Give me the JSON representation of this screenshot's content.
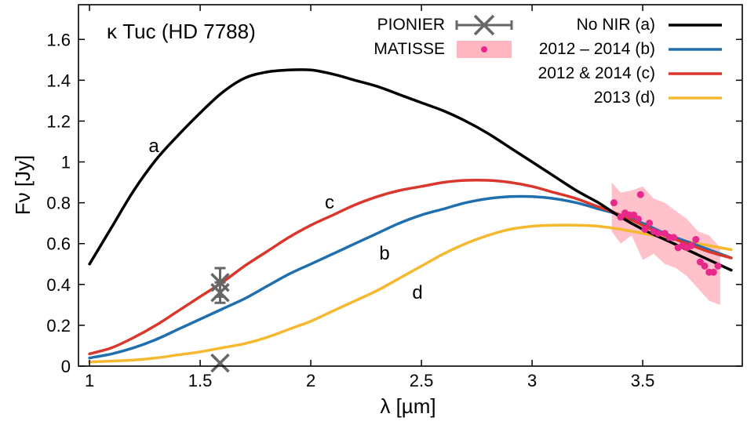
{
  "chart_data": {
    "type": "line",
    "title": "κ Tuc (HD 7788)",
    "xlabel": "λ [µm]",
    "ylabel": "Fν [Jy]",
    "xlim": [
      0.95,
      3.95
    ],
    "ylim": [
      0,
      1.77
    ],
    "xticks": [
      1,
      1.5,
      2,
      2.5,
      3,
      3.5
    ],
    "xtick_labels": [
      "1",
      "1.5",
      "2",
      "2.5",
      "3",
      "3.5"
    ],
    "yticks": [
      0,
      0.2,
      0.4,
      0.6,
      0.8,
      1,
      1.2,
      1.4,
      1.6
    ],
    "ytick_labels": [
      "0",
      "0.2",
      "0.4",
      "0.6",
      "0.8",
      "1",
      "1.2",
      "1.4",
      "1.6"
    ],
    "grid": false,
    "legend_placement": "top-right",
    "series": [
      {
        "name": "No NIR (a)",
        "label": "a",
        "color": "#000000",
        "x": [
          1.0,
          1.1,
          1.2,
          1.3,
          1.4,
          1.5,
          1.6,
          1.7,
          1.8,
          1.9,
          2.0,
          2.1,
          2.2,
          2.3,
          2.4,
          2.5,
          2.6,
          2.7,
          2.8,
          2.9,
          3.0,
          3.1,
          3.2,
          3.3,
          3.4,
          3.5,
          3.6,
          3.7,
          3.8,
          3.9
        ],
        "values": [
          0.5,
          0.68,
          0.86,
          1.01,
          1.13,
          1.24,
          1.34,
          1.41,
          1.44,
          1.45,
          1.45,
          1.43,
          1.4,
          1.37,
          1.33,
          1.29,
          1.25,
          1.2,
          1.14,
          1.07,
          1.0,
          0.93,
          0.86,
          0.8,
          0.73,
          0.67,
          0.62,
          0.57,
          0.52,
          0.47
        ]
      },
      {
        "name": "2012 – 2014 (b)",
        "label": "b",
        "color": "#1f6fae",
        "x": [
          1.0,
          1.1,
          1.2,
          1.3,
          1.4,
          1.5,
          1.6,
          1.7,
          1.8,
          1.9,
          2.0,
          2.1,
          2.2,
          2.3,
          2.4,
          2.5,
          2.6,
          2.7,
          2.8,
          2.9,
          3.0,
          3.1,
          3.2,
          3.3,
          3.4,
          3.5,
          3.6,
          3.7,
          3.8,
          3.9
        ],
        "values": [
          0.04,
          0.06,
          0.09,
          0.13,
          0.18,
          0.23,
          0.28,
          0.33,
          0.39,
          0.45,
          0.5,
          0.55,
          0.6,
          0.65,
          0.7,
          0.74,
          0.77,
          0.8,
          0.82,
          0.83,
          0.83,
          0.82,
          0.8,
          0.77,
          0.74,
          0.7,
          0.65,
          0.61,
          0.57,
          0.53
        ]
      },
      {
        "name": "2012 & 2014 (c)",
        "label": "c",
        "color": "#d9372b",
        "x": [
          1.0,
          1.1,
          1.2,
          1.3,
          1.4,
          1.5,
          1.6,
          1.7,
          1.8,
          1.9,
          2.0,
          2.1,
          2.2,
          2.3,
          2.4,
          2.5,
          2.6,
          2.7,
          2.8,
          2.9,
          3.0,
          3.1,
          3.2,
          3.3,
          3.4,
          3.5,
          3.6,
          3.7,
          3.8,
          3.9
        ],
        "values": [
          0.06,
          0.09,
          0.14,
          0.2,
          0.27,
          0.34,
          0.41,
          0.49,
          0.56,
          0.63,
          0.69,
          0.74,
          0.79,
          0.83,
          0.86,
          0.88,
          0.9,
          0.91,
          0.91,
          0.9,
          0.88,
          0.85,
          0.82,
          0.78,
          0.74,
          0.69,
          0.64,
          0.6,
          0.56,
          0.53
        ]
      },
      {
        "name": "2013 (d)",
        "label": "d",
        "color": "#f5b82e",
        "x": [
          1.0,
          1.1,
          1.2,
          1.3,
          1.4,
          1.5,
          1.6,
          1.7,
          1.8,
          1.9,
          2.0,
          2.1,
          2.2,
          2.3,
          2.4,
          2.5,
          2.6,
          2.7,
          2.8,
          2.9,
          3.0,
          3.1,
          3.2,
          3.3,
          3.4,
          3.5,
          3.6,
          3.7,
          3.8,
          3.9
        ],
        "values": [
          0.02,
          0.025,
          0.03,
          0.04,
          0.055,
          0.07,
          0.09,
          0.11,
          0.14,
          0.18,
          0.22,
          0.27,
          0.32,
          0.37,
          0.43,
          0.49,
          0.55,
          0.6,
          0.64,
          0.67,
          0.685,
          0.69,
          0.69,
          0.685,
          0.67,
          0.65,
          0.63,
          0.61,
          0.59,
          0.57
        ]
      }
    ],
    "pionier": {
      "name": "PIONIER",
      "color": "#666666",
      "points": [
        {
          "x": 1.59,
          "y": 0.41,
          "err": 0.07
        },
        {
          "x": 1.59,
          "y": 0.36,
          "err": 0.05
        },
        {
          "x": 1.59,
          "y": 0.015,
          "err": 0.0
        }
      ]
    },
    "matisse": {
      "name": "MATISSE",
      "point_color": "#e8288a",
      "band_color": "#ffb6c1",
      "points": [
        {
          "x": 3.37,
          "y": 0.8
        },
        {
          "x": 3.4,
          "y": 0.73
        },
        {
          "x": 3.42,
          "y": 0.75
        },
        {
          "x": 3.44,
          "y": 0.74
        },
        {
          "x": 3.46,
          "y": 0.74
        },
        {
          "x": 3.48,
          "y": 0.72
        },
        {
          "x": 3.49,
          "y": 0.84
        },
        {
          "x": 3.51,
          "y": 0.67
        },
        {
          "x": 3.53,
          "y": 0.7
        },
        {
          "x": 3.55,
          "y": 0.66
        },
        {
          "x": 3.57,
          "y": 0.65
        },
        {
          "x": 3.6,
          "y": 0.65
        },
        {
          "x": 3.62,
          "y": 0.63
        },
        {
          "x": 3.64,
          "y": 0.63
        },
        {
          "x": 3.66,
          "y": 0.58
        },
        {
          "x": 3.68,
          "y": 0.59
        },
        {
          "x": 3.7,
          "y": 0.58
        },
        {
          "x": 3.72,
          "y": 0.59
        },
        {
          "x": 3.74,
          "y": 0.62
        },
        {
          "x": 3.76,
          "y": 0.51
        },
        {
          "x": 3.78,
          "y": 0.49
        },
        {
          "x": 3.8,
          "y": 0.46
        },
        {
          "x": 3.82,
          "y": 0.46
        },
        {
          "x": 3.84,
          "y": 0.49
        }
      ],
      "band": {
        "x": [
          3.36,
          3.4,
          3.45,
          3.5,
          3.55,
          3.6,
          3.65,
          3.7,
          3.75,
          3.8,
          3.85
        ],
        "upper": [
          0.9,
          0.85,
          0.86,
          0.88,
          0.82,
          0.8,
          0.76,
          0.72,
          0.66,
          0.64,
          0.58
        ],
        "lower": [
          0.66,
          0.6,
          0.64,
          0.52,
          0.55,
          0.5,
          0.48,
          0.44,
          0.38,
          0.32,
          0.3
        ]
      }
    }
  }
}
